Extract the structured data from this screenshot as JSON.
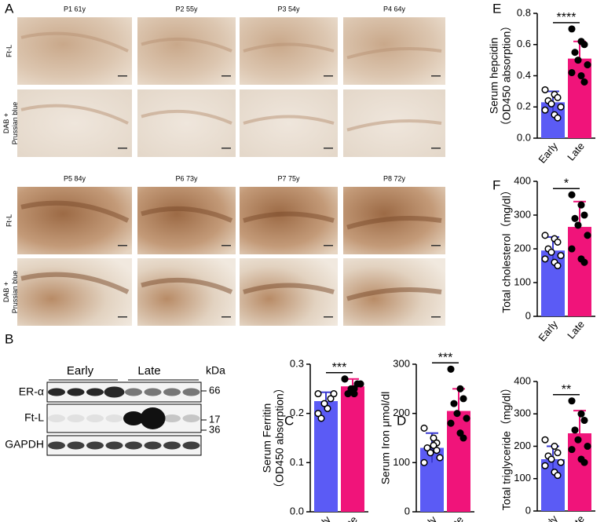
{
  "panel_labels": [
    "A",
    "B",
    "C",
    "D",
    "E",
    "F"
  ],
  "histology": {
    "blocks": [
      {
        "columns": [
          "P1 61y",
          "P2 55y",
          "P3 54y",
          "P4 64y"
        ],
        "rows": [
          [
            "Ft-L"
          ],
          [
            "DAB +",
            "Prussian blue"
          ]
        ]
      },
      {
        "columns": [
          "P5 84y",
          "P6 73y",
          "P7 75y",
          "P8 72y"
        ],
        "rows": [
          [
            "Ft-L"
          ],
          [
            "DAB +",
            "Prussian blue"
          ]
        ]
      }
    ]
  },
  "western_blot": {
    "groups": [
      "Early",
      "Late"
    ],
    "unit": "kDa",
    "rows": [
      "ER-α",
      "Ft-L",
      "GAPDH"
    ],
    "sizes": [
      "66",
      "17",
      "36"
    ]
  },
  "chart_data": [
    {
      "type": "bar",
      "ylabel": [
        "Serum Ferritin",
        "（OD450 absorption）"
      ],
      "categories": [
        "Early",
        "Late"
      ],
      "values": [
        0.225,
        0.255
      ],
      "errors": [
        0.018,
        0.015
      ],
      "colors": [
        "#5b5bf5",
        "#f0147a"
      ],
      "point_fill": [
        "#ffffff",
        "#000000"
      ],
      "points": [
        [
          0.24,
          0.21,
          0.23,
          0.19,
          0.22,
          0.24,
          0.2
        ],
        [
          0.27,
          0.25,
          0.26,
          0.24,
          0.25,
          0.26,
          0.27,
          0.24
        ]
      ],
      "ylim": [
        0,
        0.3
      ],
      "yticks": [
        {
          "value": 0,
          "label": "0.0"
        },
        0.1,
        0.2,
        0.3
      ],
      "significance": "***"
    },
    {
      "type": "bar",
      "ylabel": [
        "Serum Iron μmol/dl"
      ],
      "categories": [
        "Early",
        "Late"
      ],
      "values": [
        130,
        205
      ],
      "errors": [
        30,
        45
      ],
      "colors": [
        "#5b5bf5",
        "#f0147a"
      ],
      "point_fill": [
        "#ffffff",
        "#000000"
      ],
      "points": [
        [
          170,
          150,
          140,
          130,
          120,
          110,
          100,
          135,
          125
        ],
        [
          290,
          250,
          230,
          220,
          200,
          190,
          180,
          160,
          150
        ]
      ],
      "ylim": [
        0,
        300
      ],
      "yticks": [
        0,
        100,
        200,
        300
      ],
      "significance": "***"
    },
    {
      "type": "bar",
      "ylabel": [
        "Serum hepcidin",
        "（OD450 absorption）"
      ],
      "categories": [
        "Early",
        "Late"
      ],
      "values": [
        0.23,
        0.51
      ],
      "errors": [
        0.07,
        0.11
      ],
      "colors": [
        "#5b5bf5",
        "#f0147a"
      ],
      "point_fill": [
        "#ffffff",
        "#000000"
      ],
      "points": [
        [
          0.31,
          0.28,
          0.26,
          0.24,
          0.22,
          0.2,
          0.18,
          0.15,
          0.13
        ],
        [
          0.7,
          0.62,
          0.6,
          0.55,
          0.5,
          0.47,
          0.42,
          0.4,
          0.36
        ]
      ],
      "ylim": [
        0,
        0.8
      ],
      "yticks": [
        {
          "value": 0,
          "label": "0.0"
        },
        0.2,
        0.4,
        0.6,
        0.8
      ],
      "significance": "****"
    },
    {
      "type": "bar",
      "ylabel": [
        "Total cholesterol（mg/dl）"
      ],
      "categories": [
        "Early",
        "Late"
      ],
      "values": [
        195,
        265
      ],
      "errors": [
        40,
        75
      ],
      "colors": [
        "#5b5bf5",
        "#f0147a"
      ],
      "point_fill": [
        "#ffffff",
        "#000000"
      ],
      "points": [
        [
          240,
          230,
          220,
          200,
          190,
          180,
          170,
          160,
          150
        ],
        [
          360,
          330,
          300,
          290,
          270,
          240,
          200,
          170,
          160
        ]
      ],
      "ylim": [
        0,
        400
      ],
      "yticks": [
        0,
        100,
        200,
        300,
        400
      ],
      "significance": "*"
    },
    {
      "type": "bar",
      "ylabel": [
        "Total triglyceride（mg/dl）"
      ],
      "categories": [
        "Early",
        "Late"
      ],
      "values": [
        160,
        240
      ],
      "errors": [
        40,
        70
      ],
      "colors": [
        "#5b5bf5",
        "#f0147a"
      ],
      "point_fill": [
        "#ffffff",
        "#000000"
      ],
      "points": [
        [
          220,
          200,
          180,
          170,
          160,
          150,
          140,
          120,
          110
        ],
        [
          340,
          300,
          280,
          250,
          220,
          200,
          190,
          160,
          150
        ]
      ],
      "ylim": [
        0,
        400
      ],
      "yticks": [
        0,
        100,
        200,
        300,
        400
      ],
      "significance": "**"
    }
  ]
}
